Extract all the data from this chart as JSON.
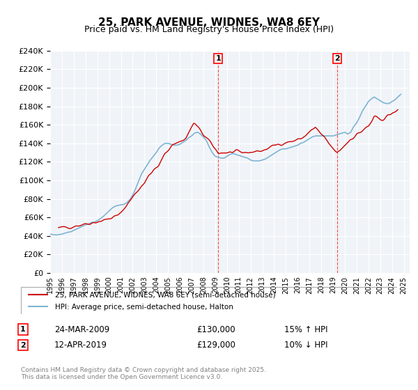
{
  "title": "25, PARK AVENUE, WIDNES, WA8 6EY",
  "subtitle": "Price paid vs. HM Land Registry's House Price Index (HPI)",
  "ylabel_ticks": [
    "£0",
    "£20K",
    "£40K",
    "£60K",
    "£80K",
    "£100K",
    "£120K",
    "£140K",
    "£160K",
    "£180K",
    "£200K",
    "£220K",
    "£240K"
  ],
  "ylim": [
    0,
    240000
  ],
  "yticks": [
    0,
    20000,
    40000,
    60000,
    80000,
    100000,
    120000,
    140000,
    160000,
    180000,
    200000,
    220000,
    240000
  ],
  "xmin": 1995,
  "xmax": 2025.5,
  "marker1": {
    "x": 2009.25,
    "label": "1",
    "date": "24-MAR-2009",
    "price": "£130,000",
    "hpi": "15% ↑ HPI"
  },
  "marker2": {
    "x": 2019.33,
    "label": "2",
    "date": "12-APR-2019",
    "price": "£129,000",
    "hpi": "10% ↓ HPI"
  },
  "legend1": "25, PARK AVENUE, WIDNES, WA8 6EY (semi-detached house)",
  "legend2": "HPI: Average price, semi-detached house, Halton",
  "copyright": "Contains HM Land Registry data © Crown copyright and database right 2025.\nThis data is licensed under the Open Government Licence v3.0.",
  "line_color_red": "#cc0000",
  "line_color_blue": "#7fb3d3",
  "bg_color": "#f0f4f8",
  "grid_color": "#ffffff",
  "hpi_data": {
    "years": [
      1995.0,
      1995.25,
      1995.5,
      1995.75,
      1996.0,
      1996.25,
      1996.5,
      1996.75,
      1997.0,
      1997.25,
      1997.5,
      1997.75,
      1998.0,
      1998.25,
      1998.5,
      1998.75,
      1999.0,
      1999.25,
      1999.5,
      1999.75,
      2000.0,
      2000.25,
      2000.5,
      2000.75,
      2001.0,
      2001.25,
      2001.5,
      2001.75,
      2002.0,
      2002.25,
      2002.5,
      2002.75,
      2003.0,
      2003.25,
      2003.5,
      2003.75,
      2004.0,
      2004.25,
      2004.5,
      2004.75,
      2005.0,
      2005.25,
      2005.5,
      2005.75,
      2006.0,
      2006.25,
      2006.5,
      2006.75,
      2007.0,
      2007.25,
      2007.5,
      2007.75,
      2008.0,
      2008.25,
      2008.5,
      2008.75,
      2009.0,
      2009.25,
      2009.5,
      2009.75,
      2010.0,
      2010.25,
      2010.5,
      2010.75,
      2011.0,
      2011.25,
      2011.5,
      2011.75,
      2012.0,
      2012.25,
      2012.5,
      2012.75,
      2013.0,
      2013.25,
      2013.5,
      2013.75,
      2014.0,
      2014.25,
      2014.5,
      2014.75,
      2015.0,
      2015.25,
      2015.5,
      2015.75,
      2016.0,
      2016.25,
      2016.5,
      2016.75,
      2017.0,
      2017.25,
      2017.5,
      2017.75,
      2018.0,
      2018.25,
      2018.5,
      2018.75,
      2019.0,
      2019.25,
      2019.5,
      2019.75,
      2020.0,
      2020.25,
      2020.5,
      2020.75,
      2021.0,
      2021.25,
      2021.5,
      2021.75,
      2022.0,
      2022.25,
      2022.5,
      2022.75,
      2023.0,
      2023.25,
      2023.5,
      2023.75,
      2024.0,
      2024.25,
      2024.5,
      2024.75
    ],
    "values": [
      42000,
      41500,
      41000,
      41500,
      42000,
      43000,
      44000,
      44500,
      46000,
      47500,
      49000,
      50500,
      52000,
      53000,
      54500,
      55000,
      56500,
      58500,
      61000,
      64000,
      67000,
      70000,
      72000,
      73000,
      73500,
      74000,
      76000,
      79000,
      84000,
      91000,
      99000,
      107000,
      112000,
      117000,
      122000,
      126000,
      130000,
      135000,
      138000,
      140000,
      140000,
      139000,
      138000,
      138000,
      139000,
      141000,
      143000,
      146000,
      148000,
      151000,
      152000,
      150000,
      147000,
      143000,
      136000,
      130000,
      126000,
      125000,
      124000,
      124000,
      126000,
      128000,
      129000,
      128000,
      127000,
      126000,
      125000,
      124000,
      122000,
      121000,
      121000,
      121000,
      122000,
      123000,
      125000,
      127000,
      129000,
      131000,
      133000,
      134000,
      134000,
      135000,
      136000,
      137000,
      138000,
      140000,
      141000,
      143000,
      145000,
      147000,
      148000,
      148000,
      148000,
      148000,
      148000,
      148000,
      148000,
      149000,
      150000,
      151000,
      152000,
      150000,
      152000,
      158000,
      162000,
      168000,
      175000,
      180000,
      185000,
      188000,
      190000,
      188000,
      186000,
      184000,
      183000,
      183000,
      185000,
      187000,
      190000,
      193000
    ]
  },
  "property_data": {
    "years": [
      1995.7,
      1997.5,
      1999.6,
      2000.8,
      2003.7,
      2004.2,
      2004.7,
      2005.3,
      2006.5,
      2007.2,
      2009.25,
      2011.5,
      2013.0,
      2014.5,
      2015.5,
      2016.3,
      2017.5,
      2019.33,
      2020.5,
      2022.0,
      2022.5,
      2023.0,
      2023.7,
      2024.5
    ],
    "values": [
      48000,
      52000,
      57000,
      62000,
      110000,
      115000,
      128000,
      138000,
      145000,
      162000,
      130000,
      130000,
      132000,
      140000,
      142000,
      145000,
      157000,
      129000,
      145000,
      158000,
      168000,
      165000,
      170000,
      175000
    ]
  }
}
